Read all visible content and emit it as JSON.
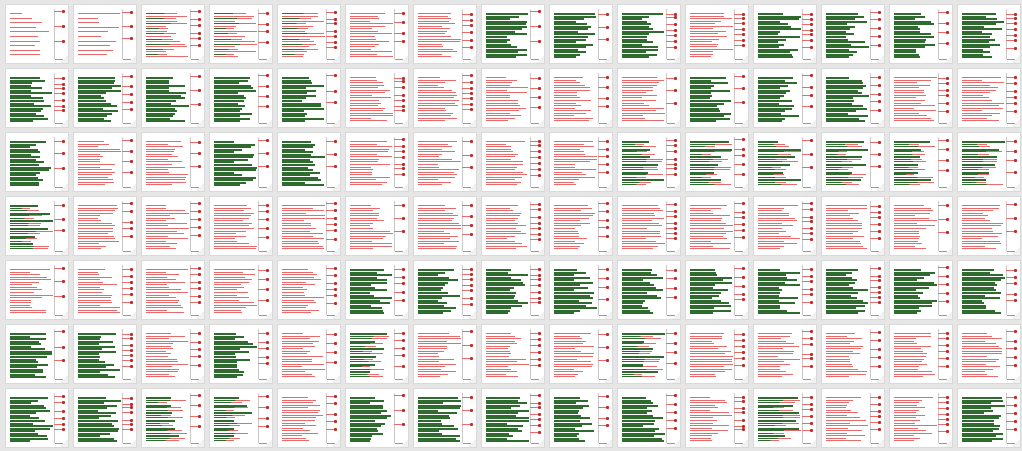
{
  "view": {
    "background": "#e6e6e6",
    "page_background": "#ffffff",
    "red_markup_color": "#e86b6b",
    "green_markup_color": "#2f6b2f",
    "accent_annotation_color": "#c62828"
  },
  "thumbnails": {
    "columns": 15,
    "rows": 7,
    "count": 105,
    "patterns": [
      "title",
      "toc",
      "dense-mixed",
      "dense-mixed",
      "dense-mixed",
      "red",
      "red",
      "green",
      "green",
      "green",
      "red",
      "green",
      "green",
      "green",
      "green",
      "green",
      "green",
      "green",
      "green",
      "green",
      "red",
      "red",
      "red",
      "red",
      "red",
      "green",
      "green",
      "green",
      "red",
      "red",
      "green",
      "red",
      "red",
      "green",
      "green",
      "red",
      "red",
      "red",
      "red",
      "mixed",
      "mixed",
      "mixed",
      "mixed",
      "mixed",
      "mixed",
      "mixed",
      "red",
      "red",
      "red",
      "red",
      "red",
      "red",
      "red",
      "red",
      "red",
      "red",
      "red",
      "red",
      "red",
      "red",
      "red",
      "red",
      "red",
      "red",
      "red",
      "green",
      "green",
      "green",
      "green",
      "green",
      "green",
      "green",
      "green",
      "green",
      "green",
      "green",
      "green",
      "red",
      "green",
      "red",
      "mixed",
      "red",
      "red",
      "red",
      "mixed",
      "red",
      "red",
      "red",
      "red",
      "red",
      "green",
      "green",
      "mixed",
      "mixed",
      "red",
      "green",
      "green",
      "green",
      "green",
      "green",
      "red",
      "mixed",
      "red",
      "red",
      "green"
    ]
  }
}
